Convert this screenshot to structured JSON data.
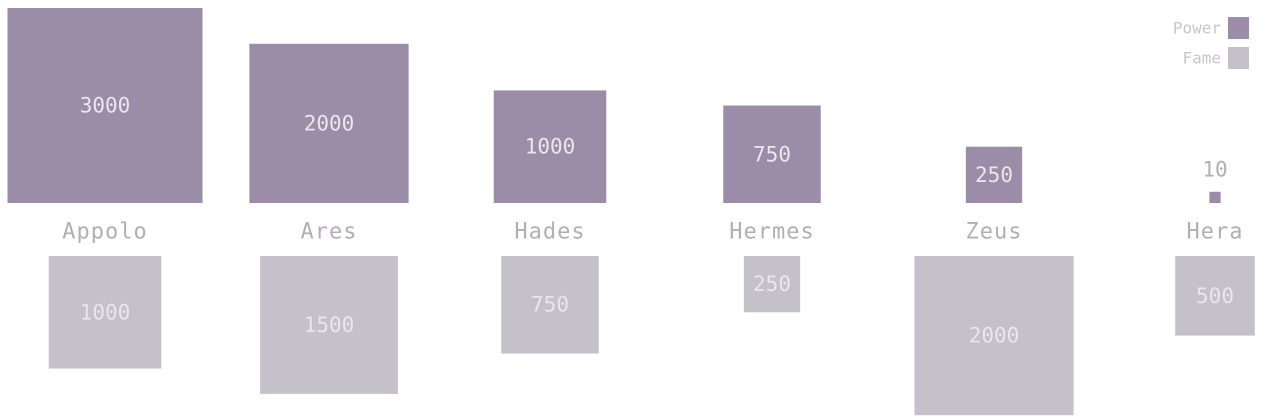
{
  "chart_data": {
    "type": "bar",
    "title": "",
    "categories": [
      "Appolo",
      "Ares",
      "Hades",
      "Hermes",
      "Zeus",
      "Hera"
    ],
    "series": [
      {
        "name": "Power",
        "values": [
          3000,
          2000,
          1000,
          750,
          250,
          10
        ]
      },
      {
        "name": "Fame",
        "values": [
          1000,
          1500,
          750,
          250,
          2000,
          500
        ]
      }
    ],
    "encoding": "square-area",
    "legend_position": "top-right",
    "colors": {
      "Power": "#9b8da8",
      "Fame": "#c4c1cb"
    }
  }
}
